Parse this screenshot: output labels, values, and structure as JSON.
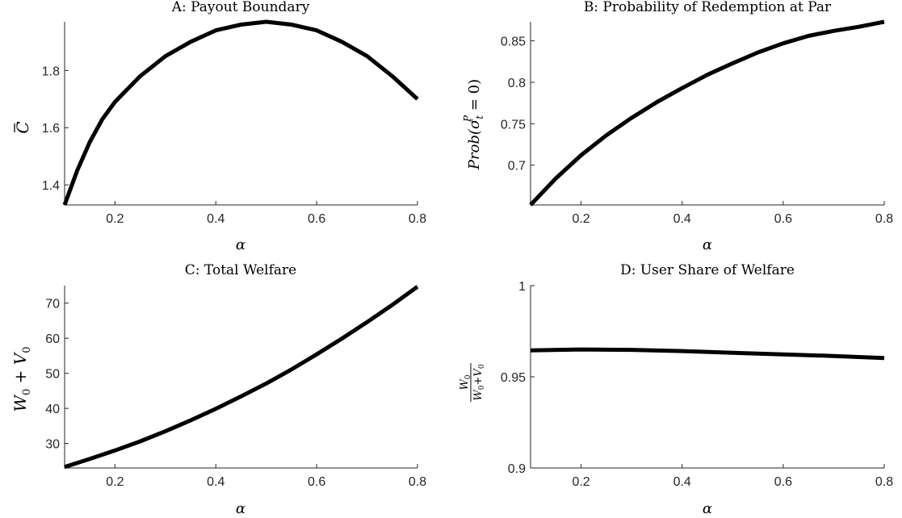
{
  "chart_data": [
    {
      "type": "line",
      "title": "A: Payout Boundary",
      "xlabel": "α",
      "ylabel": "C̅",
      "xlim": [
        0.1,
        0.8
      ],
      "ylim": [
        1.33,
        1.97
      ],
      "xticks": [
        "0.2",
        "0.4",
        "0.6",
        "0.8"
      ],
      "yticks": [
        "1.4",
        "1.6",
        "1.8"
      ],
      "grid": false,
      "series": [
        {
          "color": "#000000",
          "x": [
            0.1,
            0.125,
            0.15,
            0.175,
            0.2,
            0.25,
            0.3,
            0.35,
            0.4,
            0.45,
            0.5,
            0.55,
            0.6,
            0.65,
            0.7,
            0.75,
            0.8
          ],
          "y": [
            1.33,
            1.45,
            1.55,
            1.63,
            1.69,
            1.78,
            1.85,
            1.9,
            1.94,
            1.96,
            1.97,
            1.96,
            1.94,
            1.9,
            1.85,
            1.78,
            1.7
          ]
        }
      ]
    },
    {
      "type": "line",
      "title": "B: Probability of Redemption at Par",
      "xlabel": "α",
      "ylabel": "Prob(σ_t^P = 0)",
      "xlim": [
        0.1,
        0.8
      ],
      "ylim": [
        0.652,
        0.873
      ],
      "xticks": [
        "0.2",
        "0.4",
        "0.6",
        "0.8"
      ],
      "yticks": [
        "0.7",
        "0.75",
        "0.8",
        "0.85"
      ],
      "grid": false,
      "series": [
        {
          "color": "#000000",
          "x": [
            0.1,
            0.15,
            0.2,
            0.25,
            0.3,
            0.35,
            0.4,
            0.45,
            0.5,
            0.55,
            0.6,
            0.65,
            0.7,
            0.75,
            0.8
          ],
          "y": [
            0.652,
            0.684,
            0.712,
            0.736,
            0.757,
            0.776,
            0.793,
            0.809,
            0.823,
            0.836,
            0.847,
            0.856,
            0.862,
            0.867,
            0.873
          ]
        }
      ]
    },
    {
      "type": "line",
      "title": "C: Total Welfare",
      "xlabel": "α",
      "ylabel": "W₀ + V₀",
      "xlim": [
        0.1,
        0.8
      ],
      "ylim": [
        23,
        75
      ],
      "xticks": [
        "0.2",
        "0.4",
        "0.6",
        "0.8"
      ],
      "yticks": [
        "30",
        "40",
        "50",
        "60",
        "70"
      ],
      "grid": false,
      "series": [
        {
          "color": "#000000",
          "x": [
            0.1,
            0.15,
            0.2,
            0.25,
            0.3,
            0.35,
            0.4,
            0.45,
            0.5,
            0.55,
            0.6,
            0.65,
            0.7,
            0.75,
            0.8
          ],
          "y": [
            23.3,
            25.6,
            28.0,
            30.6,
            33.5,
            36.6,
            39.9,
            43.4,
            47.1,
            51.1,
            55.4,
            59.9,
            64.6,
            69.5,
            74.7
          ]
        }
      ]
    },
    {
      "type": "line",
      "title": "D: User Share of Welfare",
      "xlabel": "α",
      "ylabel": "W₀ / (W₀ + V₀)",
      "xlim": [
        0.1,
        0.8
      ],
      "ylim": [
        0.9,
        1
      ],
      "xticks": [
        "0.2",
        "0.4",
        "0.6",
        "0.8"
      ],
      "yticks": [
        "0.9",
        "0.95",
        "1"
      ],
      "grid": false,
      "series": [
        {
          "color": "#000000",
          "x": [
            0.1,
            0.2,
            0.3,
            0.4,
            0.5,
            0.6,
            0.7,
            0.8
          ],
          "y": [
            0.9645,
            0.965,
            0.9648,
            0.9641,
            0.9632,
            0.9623,
            0.9614,
            0.9603
          ]
        }
      ]
    }
  ]
}
